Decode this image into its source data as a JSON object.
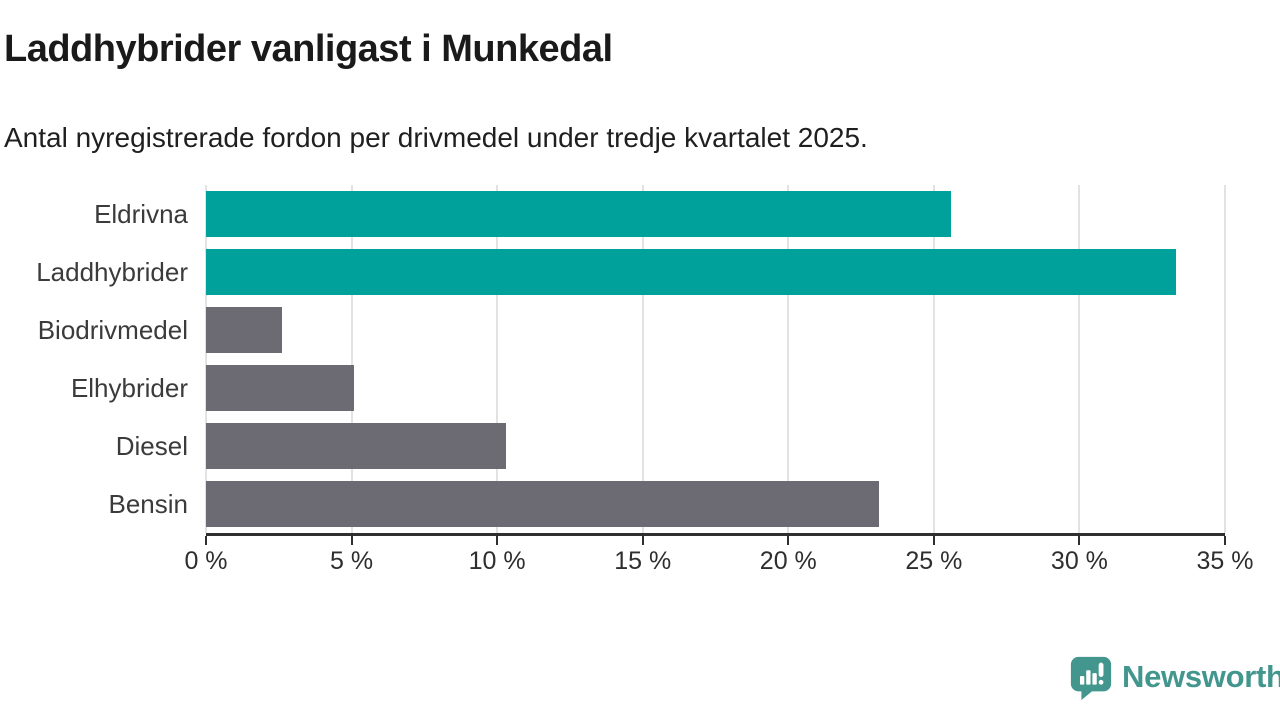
{
  "header": {
    "title": "Laddhybrider vanligast i Munkedal",
    "subtitle": "Antal nyregistrerade fordon per drivmedel under tredje kvartalet 2025."
  },
  "chart_data": {
    "type": "bar",
    "orientation": "horizontal",
    "title": "Laddhybrider vanligast i Munkedal",
    "subtitle": "Antal nyregistrerade fordon per drivmedel under tredje kvartalet 2025.",
    "categories": [
      "Eldrivna",
      "Laddhybrider",
      "Biodrivmedel",
      "Elhybrider",
      "Diesel",
      "Bensin"
    ],
    "values": [
      25.6,
      33.3,
      2.6,
      5.1,
      10.3,
      23.1
    ],
    "unit": "%",
    "bar_colors": [
      "#00a19a",
      "#00a19a",
      "#6c6b74",
      "#6c6b74",
      "#6c6b74",
      "#6c6b74"
    ],
    "highlight_color": "#00a19a",
    "neutral_color": "#6c6b74",
    "xlim": [
      0,
      35
    ],
    "x_ticks": [
      0,
      5,
      10,
      15,
      20,
      25,
      30,
      35
    ],
    "x_tick_labels": [
      "0 %",
      "5 %",
      "10 %",
      "15 %",
      "20 %",
      "25 %",
      "30 %",
      "35 %"
    ],
    "grid": "vertical",
    "legend": "none",
    "xlabel": "",
    "ylabel": ""
  },
  "branding": {
    "logo_text": "Newsworthy",
    "logo_color": "#42968e",
    "logo_icon": "speech-bubble-bar-chart-icon"
  },
  "style": {
    "gridline_color": "#e2e2e2",
    "axis_color": "#2f2f2f",
    "title_color": "#1a1a1a",
    "label_color": "#3b3b3b",
    "background": "#ffffff"
  }
}
